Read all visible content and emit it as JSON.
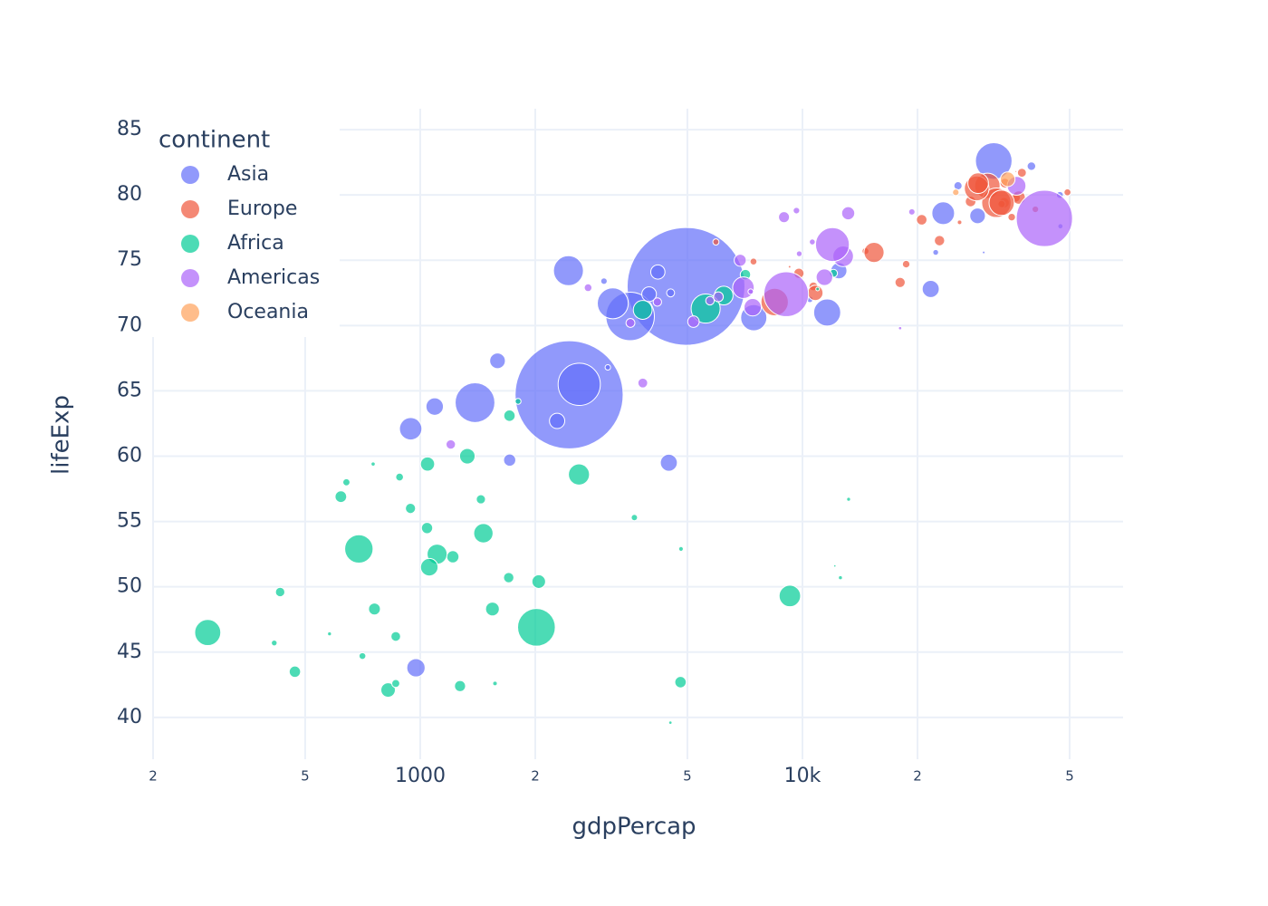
{
  "chart_data": {
    "type": "scatter",
    "xlabel": "gdpPercap",
    "ylabel": "lifeExp",
    "legend_title": "continent",
    "log_x": true,
    "grid": true,
    "legend": "upper left",
    "xlim": [
      200,
      69000
    ],
    "ylim": [
      36.8,
      86.6
    ],
    "xticks": [
      {
        "value": 200,
        "label": "2"
      },
      {
        "value": 500,
        "label": "5"
      },
      1000,
      {
        "value": 2000,
        "label": "2"
      },
      {
        "value": 5000,
        "label": "5"
      },
      {
        "value": 10000,
        "label": "10k"
      },
      {
        "value": 20000,
        "label": "2"
      },
      {
        "value": 50000,
        "label": "5"
      }
    ],
    "yticks": [
      40,
      45,
      50,
      55,
      60,
      65,
      70,
      75,
      80,
      85
    ],
    "series": [
      {
        "name": "Asia",
        "color": "#636efa",
        "x": [
          974.6,
          29796,
          1391,
          1714,
          4959,
          39725,
          2452,
          3541,
          11606,
          4471,
          25523,
          31656,
          4519,
          1593,
          23348,
          47307,
          10461,
          12452,
          3096,
          944,
          1091,
          22316,
          2606,
          3190,
          21655,
          47143,
          3970,
          4185,
          28718,
          7458,
          2442,
          3025,
          2281
        ],
        "values": [
          43.8,
          75.6,
          64.1,
          59.7,
          73.0,
          82.2,
          64.7,
          70.7,
          71.0,
          59.5,
          80.7,
          82.6,
          72.5,
          67.3,
          78.6,
          77.6,
          72.0,
          74.2,
          66.8,
          62.1,
          63.8,
          75.6,
          65.5,
          71.7,
          72.8,
          80.0,
          72.4,
          74.1,
          78.4,
          70.6,
          74.2,
          73.4,
          62.7
        ],
        "sizes": [
          31.9,
          0.71,
          150,
          14.1,
          1318.7,
          6.98,
          1110,
          223.5,
          69.5,
          27.5,
          6.4,
          127.5,
          6.05,
          23.3,
          49.0,
          2.5,
          3.9,
          24.8,
          2.87,
          47.8,
          28.9,
          3.2,
          169.3,
          91.1,
          27.6,
          4.55,
          20.4,
          19.3,
          23.2,
          65.1,
          85.3,
          4.0,
          22.2
        ]
      },
      {
        "name": "Europe",
        "color": "#EF553B",
        "x": [
          5937,
          36126,
          33693,
          7446,
          10681,
          14619,
          22833,
          35278,
          33207,
          30470,
          32170,
          27538,
          18009,
          36181,
          40676,
          28570,
          9254,
          36798,
          49357,
          15390,
          20510,
          10808,
          9787,
          18678,
          25768,
          28821,
          33860,
          37506,
          8458,
          33203
        ],
        "values": [
          76.4,
          79.8,
          79.4,
          74.9,
          73.0,
          75.7,
          76.5,
          78.3,
          79.3,
          80.7,
          79.4,
          79.5,
          73.3,
          81.8,
          78.9,
          80.5,
          74.5,
          79.8,
          80.2,
          75.6,
          78.1,
          72.5,
          74.0,
          74.7,
          77.9,
          80.9,
          80.9,
          81.7,
          71.8,
          79.4
        ],
        "sizes": [
          3.6,
          8.2,
          10.4,
          4.55,
          7.3,
          4.5,
          10.2,
          5.5,
          5.2,
          61.1,
          82.4,
          10.7,
          9.96,
          0.3,
          4.1,
          58.1,
          0.68,
          16.6,
          4.6,
          38.5,
          10.6,
          22.3,
          10.2,
          5.4,
          2.0,
          40.4,
          9.0,
          7.55,
          71.2,
          60.8
        ]
      },
      {
        "name": "Africa",
        "color": "#00cc96",
        "x": [
          6223,
          4797,
          1441,
          12570,
          1217,
          430,
          2042,
          706,
          1704,
          278,
          3633,
          1545,
          5581,
          12154,
          641,
          691,
          13206,
          753,
          1328,
          943,
          579,
          1463,
          1569,
          415,
          12057,
          1045,
          759,
          1042,
          1803,
          10957,
          3820,
          824,
          4811,
          620,
          2014,
          863,
          1712,
          863,
          9270,
          2602,
          4513,
          1107,
          883,
          7093,
          1056,
          1271,
          470
        ],
        "values": [
          72.3,
          42.7,
          56.7,
          50.7,
          52.3,
          49.6,
          50.4,
          44.7,
          50.7,
          46.5,
          55.3,
          48.3,
          71.3,
          51.6,
          58.0,
          52.9,
          56.7,
          59.4,
          60.0,
          56.0,
          46.4,
          54.1,
          42.6,
          45.7,
          74.0,
          59.4,
          48.3,
          54.5,
          64.2,
          72.8,
          71.2,
          42.1,
          52.9,
          56.9,
          46.9,
          46.2,
          63.1,
          42.6,
          49.3,
          58.6,
          39.6,
          52.5,
          58.4,
          73.9,
          51.5,
          42.4,
          43.5
        ],
        "sizes": [
          33.3,
          12.4,
          8.1,
          1.6,
          14.3,
          8.4,
          17.7,
          4.4,
          10.2,
          64.6,
          3.8,
          18.0,
          80.3,
          0.55,
          4.9,
          76.5,
          1.45,
          1.7,
          22.9,
          9.9,
          1.5,
          35.6,
          2.0,
          3.2,
          6.0,
          19.2,
          13.3,
          12.0,
          3.3,
          1.25,
          33.8,
          19.95,
          2.06,
          12.9,
          135,
          8.9,
          12.3,
          6.1,
          44.0,
          42.3,
          1.1,
          38.1,
          5.7,
          10.3,
          29.2,
          11.7,
          12.3
        ]
      },
      {
        "name": "Americas",
        "color": "#ab63fa",
        "x": [
          12779,
          3822,
          9066,
          36319,
          13172,
          7007,
          9645,
          8948,
          6025,
          6873,
          5728,
          5186,
          1202,
          3548,
          7321,
          11978,
          2749,
          9809,
          4173,
          7409,
          19329,
          18009,
          42952,
          10611,
          11416
        ],
        "values": [
          75.3,
          65.6,
          72.4,
          80.7,
          78.6,
          72.9,
          78.8,
          78.3,
          72.2,
          75.0,
          71.9,
          70.3,
          60.9,
          70.2,
          72.6,
          76.2,
          72.9,
          75.5,
          71.8,
          71.4,
          78.7,
          69.8,
          78.2,
          76.4,
          73.7
        ],
        "sizes": [
          40.3,
          9.1,
          190,
          33.4,
          16.3,
          44.2,
          4.1,
          11.4,
          9.3,
          13.8,
          6.9,
          12.6,
          8.5,
          7.5,
          2.8,
          108.7,
          5.7,
          3.2,
          6.7,
          28.7,
          3.9,
          1.06,
          301,
          3.4,
          26.1
        ]
      },
      {
        "name": "Oceania",
        "color": "#FFA15A",
        "x": [
          34435,
          25185
        ],
        "values": [
          81.2,
          80.2
        ],
        "sizes": [
          20.4,
          4.1
        ]
      }
    ]
  }
}
